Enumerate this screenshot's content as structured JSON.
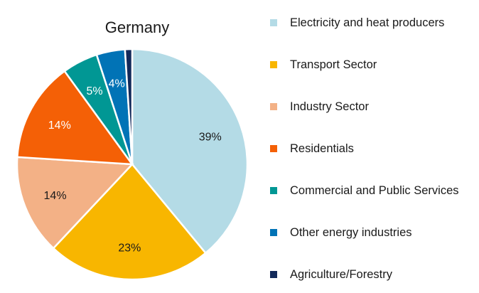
{
  "chart_data": {
    "type": "pie",
    "title": "Germany",
    "categories": [
      "Electricity and heat producers",
      "Transport Sector",
      "Industry Sector",
      "Residentials",
      "Commercial and Public Services",
      "Other energy industries",
      "Agriculture/Forestry"
    ],
    "values": [
      39,
      23,
      14,
      14,
      5,
      4,
      1
    ],
    "labels": [
      "39%",
      "23%",
      "14%",
      "14%",
      "5%",
      "4%",
      ""
    ],
    "colors": [
      "#b4dbe6",
      "#f8b600",
      "#f3b186",
      "#f46006",
      "#019794",
      "#0173b6",
      "#12295a"
    ],
    "label_colors": [
      "#1a1a1a",
      "#1a1a1a",
      "#1a1a1a",
      "#ffffff",
      "#ffffff",
      "#ffffff",
      "#ffffff"
    ],
    "legend_position": "right",
    "start_angle_deg": 0,
    "direction": "clockwise"
  }
}
